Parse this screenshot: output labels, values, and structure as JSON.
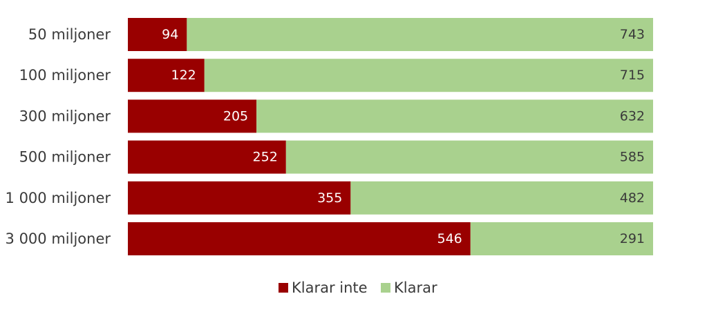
{
  "chart_data": {
    "type": "bar",
    "orientation": "horizontal",
    "stacked": true,
    "title": "",
    "xlabel": "",
    "ylabel": "",
    "categories": [
      "50 miljoner",
      "100 miljoner",
      "300 miljoner",
      "500 miljoner",
      "1 000 miljoner",
      "3 000 miljoner"
    ],
    "series": [
      {
        "name": "Klarar inte",
        "color": "#990000",
        "values": [
          94,
          122,
          205,
          252,
          355,
          546
        ]
      },
      {
        "name": "Klarar",
        "color": "#a9d18e",
        "values": [
          743,
          715,
          632,
          585,
          482,
          291
        ]
      }
    ],
    "xlim": [
      0,
      837
    ],
    "grid": false,
    "axis_lines": false,
    "legend": "bottom-center"
  }
}
